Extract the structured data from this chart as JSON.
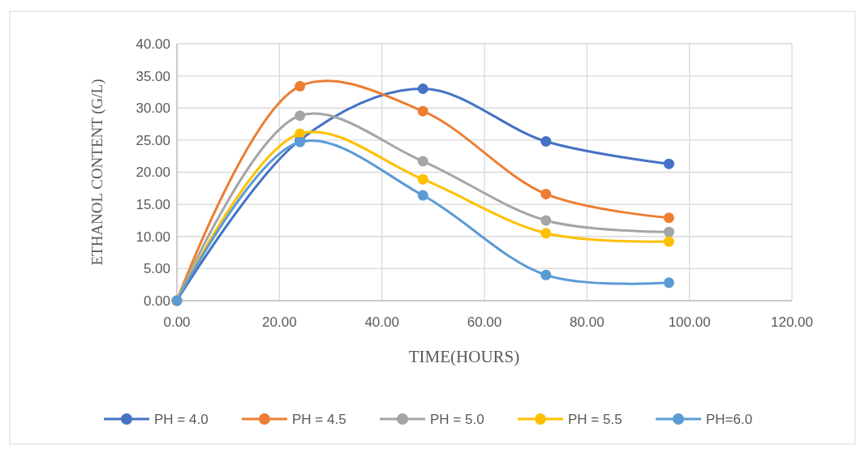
{
  "chart_data": {
    "type": "line",
    "xlabel": "TIME(HOURS)",
    "ylabel": "ETHANOL  CONTENT (G/L)",
    "x": [
      0,
      24,
      48,
      72,
      96
    ],
    "series": [
      {
        "name": "PH = 4.0",
        "color": "#4472c4",
        "values": [
          0,
          25.0,
          33.0,
          24.8,
          21.3
        ]
      },
      {
        "name": "PH = 4.5",
        "color": "#ed7d31",
        "values": [
          0,
          33.4,
          29.5,
          16.6,
          12.9
        ]
      },
      {
        "name": "PH = 5.0",
        "color": "#a5a5a5",
        "values": [
          0,
          28.8,
          21.7,
          12.5,
          10.7
        ]
      },
      {
        "name": "PH = 5.5",
        "color": "#ffc000",
        "values": [
          0,
          26.0,
          18.9,
          10.5,
          9.2
        ]
      },
      {
        "name": "PH=6.0",
        "color": "#5b9bd5",
        "values": [
          0,
          24.7,
          16.4,
          4.0,
          2.8
        ]
      }
    ],
    "xlim": [
      0,
      120
    ],
    "xticks": [
      {
        "value": 0,
        "label": "0.00"
      },
      {
        "value": 20,
        "label": "20.00"
      },
      {
        "value": 40,
        "label": "40.00"
      },
      {
        "value": 60,
        "label": "60.00"
      },
      {
        "value": 80,
        "label": "80.00"
      },
      {
        "value": 100,
        "label": "100.00"
      },
      {
        "value": 120,
        "label": "120.00"
      }
    ],
    "ylim": [
      0,
      40
    ],
    "yticks": [
      {
        "value": 0,
        "label": "0.00"
      },
      {
        "value": 5,
        "label": "5.00"
      },
      {
        "value": 10,
        "label": "10.00"
      },
      {
        "value": 15,
        "label": "15.00"
      },
      {
        "value": 20,
        "label": "20.00"
      },
      {
        "value": 25,
        "label": "25.00"
      },
      {
        "value": 30,
        "label": "30.00"
      },
      {
        "value": 35,
        "label": "35.00"
      },
      {
        "value": 40,
        "label": "40.00"
      }
    ],
    "grid": true,
    "legend": "bottom",
    "marker": "circle",
    "line_style": "solid"
  }
}
